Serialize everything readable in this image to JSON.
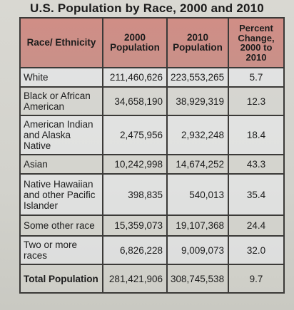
{
  "title": "U.S. Population by Race, 2000 and 2010",
  "headers": {
    "race": "Race/ Ethnicity",
    "pop2000": "2000 Population",
    "pop2010": "2010 Population",
    "pct": "Percent Change, 2000 to 2010"
  },
  "rows": [
    {
      "race": "White",
      "pop2000": "211,460,626",
      "pop2010": "223,553,265",
      "pct": "5.7"
    },
    {
      "race": "Black or African American",
      "pop2000": "34,658,190",
      "pop2010": "38,929,319",
      "pct": "12.3"
    },
    {
      "race": "American Indian and Alaska Native",
      "pop2000": "2,475,956",
      "pop2010": "2,932,248",
      "pct": "18.4"
    },
    {
      "race": "Asian",
      "pop2000": "10,242,998",
      "pop2010": "14,674,252",
      "pct": "43.3"
    },
    {
      "race": "Native Hawaiian and other Pacific Islander",
      "pop2000": "398,835",
      "pop2010": "540,013",
      "pct": "35.4"
    },
    {
      "race": "Some other race",
      "pop2000": "15,359,073",
      "pop2010": "19,107,368",
      "pct": "24.4"
    },
    {
      "race": "Two or more races",
      "pop2000": "6,826,228",
      "pop2010": "9,009,073",
      "pct": "32.0"
    },
    {
      "race": "Total Population",
      "pop2000": "281,421,906",
      "pop2010": "308,745,538",
      "pct": "9.7"
    }
  ],
  "colors": {
    "header_bg": "#cc8e87",
    "border": "#3b3a38",
    "page_bg": "#d4d3ce"
  }
}
